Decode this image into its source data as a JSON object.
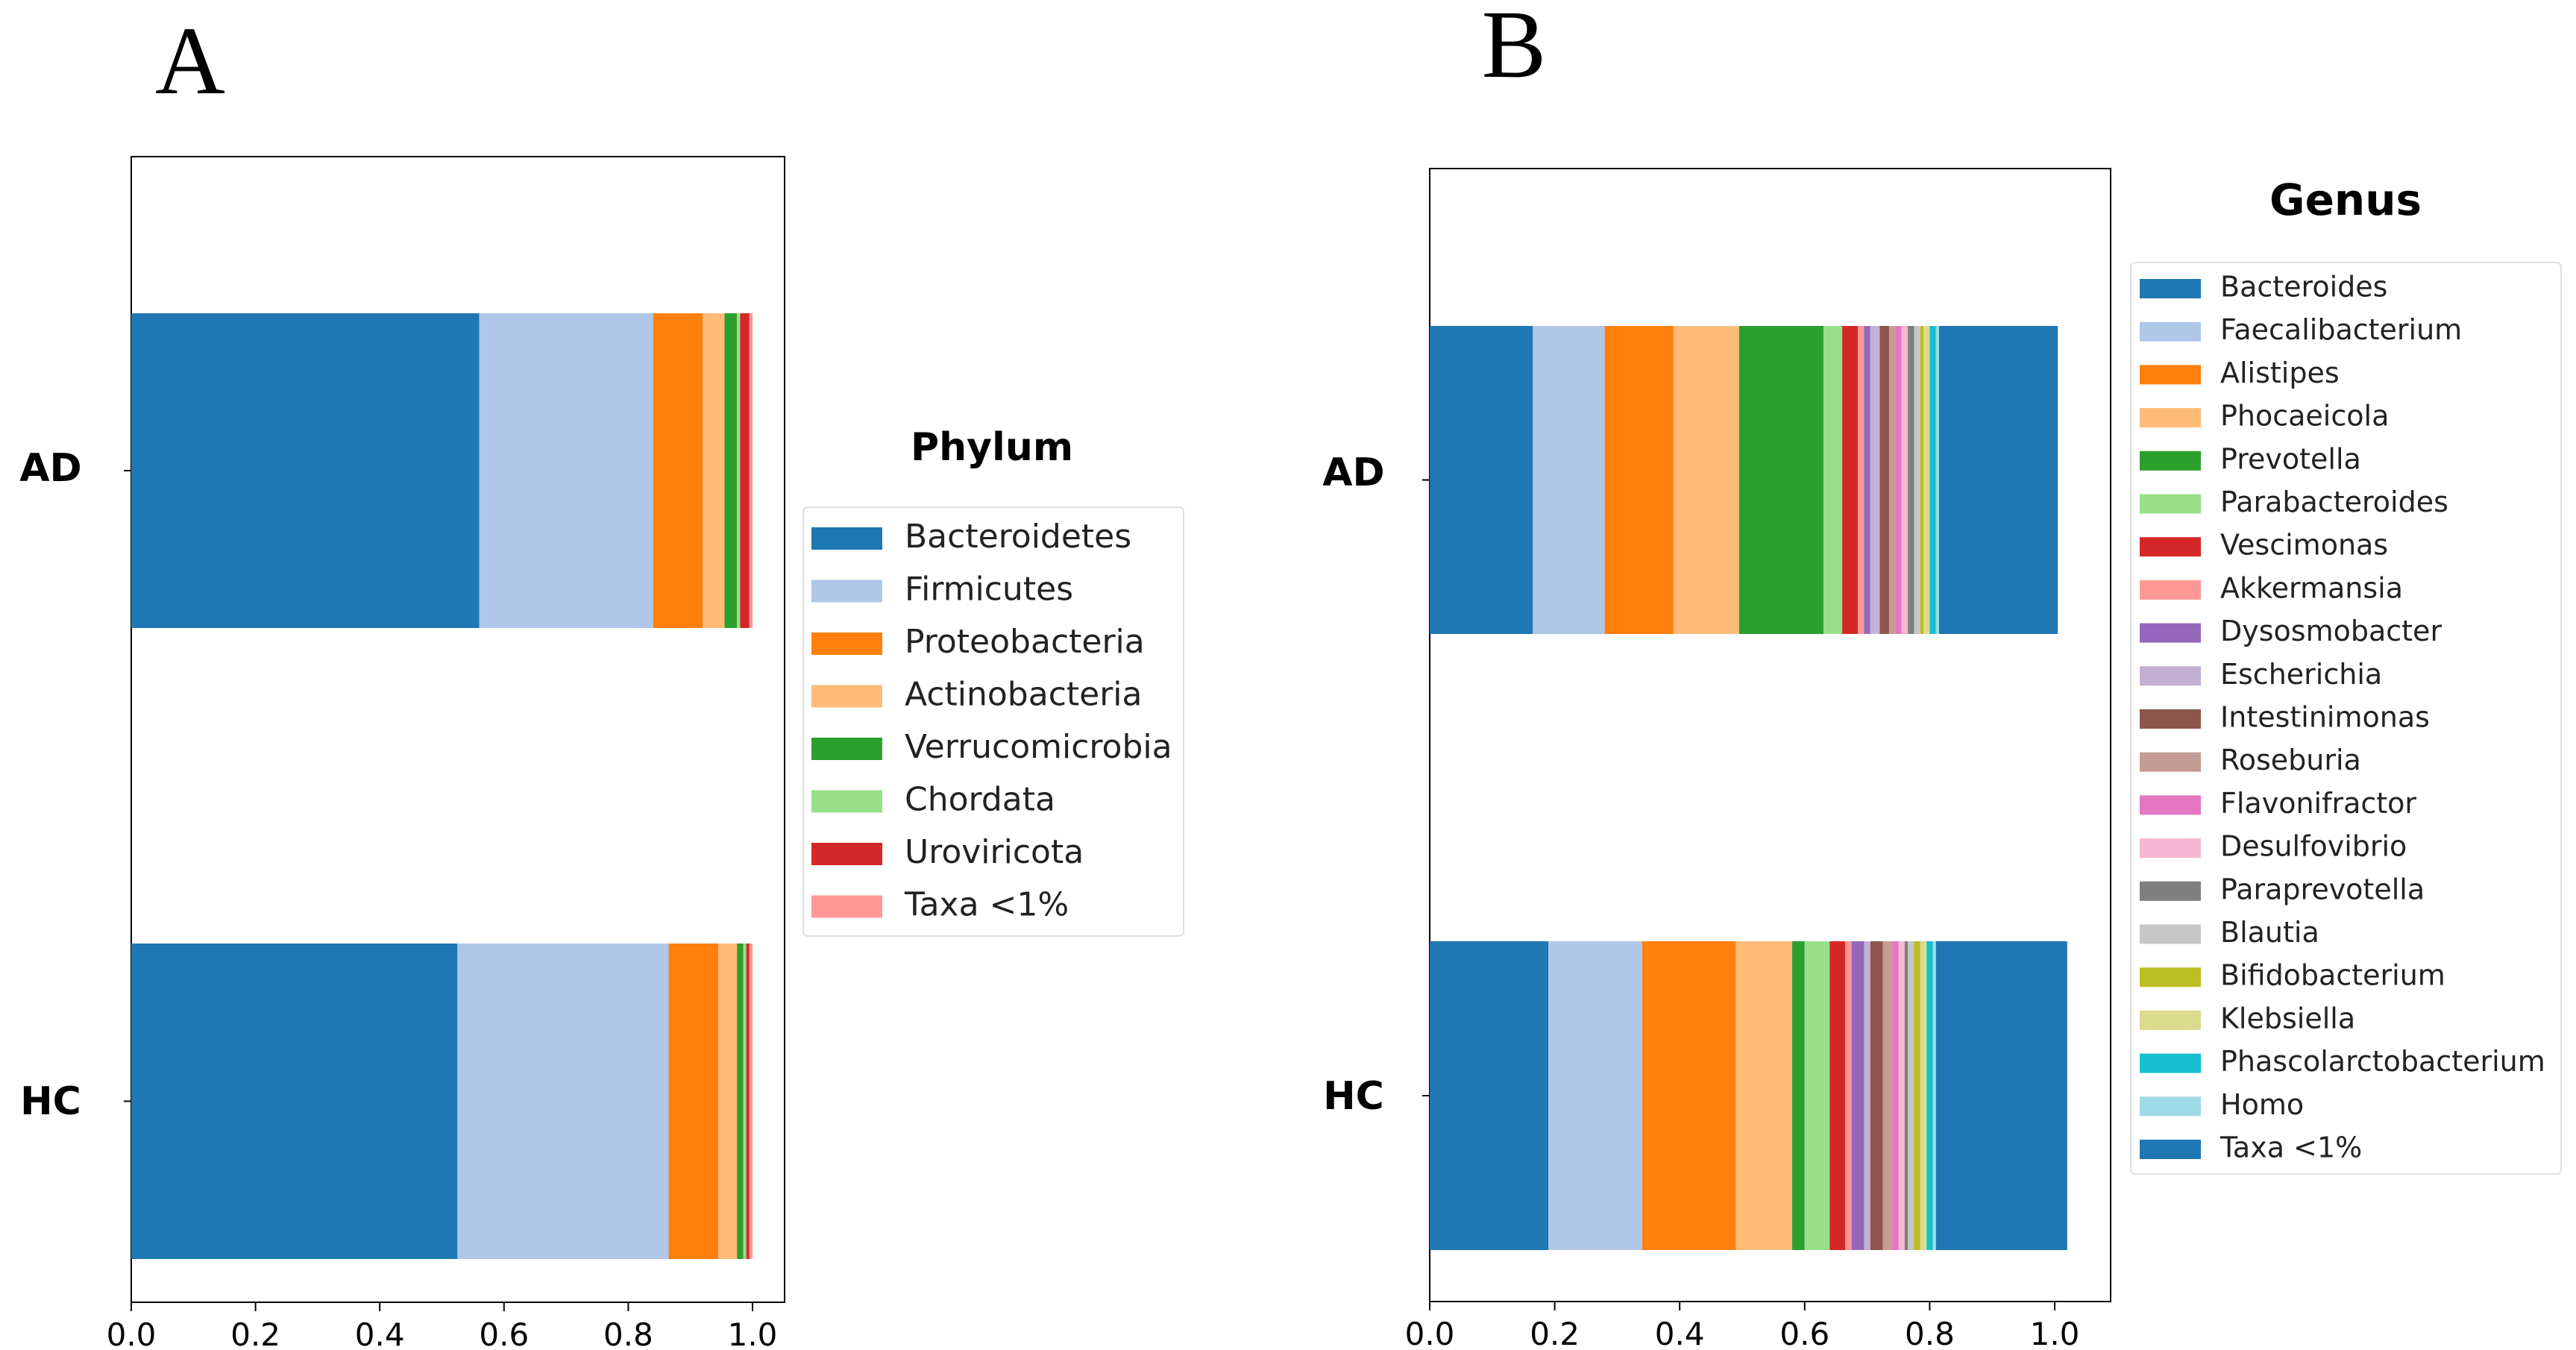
{
  "chart_data": [
    {
      "panel": "A",
      "type": "bar",
      "orientation": "horizontal",
      "stacked": true,
      "categories": [
        "AD",
        "HC"
      ],
      "xlim": [
        0.0,
        1.0
      ],
      "xticks": [
        "0.0",
        "0.2",
        "0.4",
        "0.6",
        "0.8",
        "1.0"
      ],
      "xtick_values": [
        0.0,
        0.2,
        0.4,
        0.6,
        0.8,
        1.0
      ],
      "legend_title": "Phylum",
      "legend_position": "right",
      "series": [
        {
          "name": "Bacteroidetes",
          "color": "#1f77b4",
          "values": [
            0.56,
            0.525
          ]
        },
        {
          "name": "Firmicutes",
          "color": "#aec7e8",
          "values": [
            0.28,
            0.34
          ]
        },
        {
          "name": "Proteobacteria",
          "color": "#ff7f0e",
          "values": [
            0.08,
            0.08
          ]
        },
        {
          "name": "Actinobacteria",
          "color": "#ffbb78",
          "values": [
            0.035,
            0.03
          ]
        },
        {
          "name": "Verrucomicrobia",
          "color": "#2ca02c",
          "values": [
            0.02,
            0.01
          ]
        },
        {
          "name": "Chordata",
          "color": "#98df8a",
          "values": [
            0.005,
            0.005
          ]
        },
        {
          "name": "Uroviricota",
          "color": "#d62728",
          "values": [
            0.015,
            0.005
          ]
        },
        {
          "name": "Taxa <1%",
          "color": "#ff9896",
          "values": [
            0.005,
            0.005
          ]
        }
      ]
    },
    {
      "panel": "B",
      "type": "bar",
      "orientation": "horizontal",
      "stacked": true,
      "categories": [
        "AD",
        "HC"
      ],
      "xlim": [
        0.0,
        1.08
      ],
      "xticks": [
        "0.0",
        "0.2",
        "0.4",
        "0.6",
        "0.8",
        "1.0"
      ],
      "xtick_values": [
        0.0,
        0.2,
        0.4,
        0.6,
        0.8,
        1.0
      ],
      "legend_title": "Genus",
      "legend_position": "right",
      "series": [
        {
          "name": "Bacteroides",
          "color": "#1f77b4",
          "values": [
            0.165,
            0.19
          ]
        },
        {
          "name": "Faecalibacterium",
          "color": "#aec7e8",
          "values": [
            0.115,
            0.15
          ]
        },
        {
          "name": "Alistipes",
          "color": "#ff7f0e",
          "values": [
            0.11,
            0.15
          ]
        },
        {
          "name": "Phocaeicola",
          "color": "#ffbb78",
          "values": [
            0.105,
            0.09
          ]
        },
        {
          "name": "Prevotella",
          "color": "#2ca02c",
          "values": [
            0.135,
            0.02
          ]
        },
        {
          "name": "Parabacteroides",
          "color": "#98df8a",
          "values": [
            0.03,
            0.04
          ]
        },
        {
          "name": "Vescimonas",
          "color": "#d62728",
          "values": [
            0.025,
            0.025
          ]
        },
        {
          "name": "Akkermansia",
          "color": "#ff9896",
          "values": [
            0.01,
            0.01
          ]
        },
        {
          "name": "Dysosmobacter",
          "color": "#9467bd",
          "values": [
            0.01,
            0.02
          ]
        },
        {
          "name": "Escherichia",
          "color": "#c5b0d5",
          "values": [
            0.015,
            0.01
          ]
        },
        {
          "name": "Intestinimonas",
          "color": "#8c564b",
          "values": [
            0.015,
            0.02
          ]
        },
        {
          "name": "Roseburia",
          "color": "#c49c94",
          "values": [
            0.01,
            0.015
          ]
        },
        {
          "name": "Flavonifractor",
          "color": "#e377c2",
          "values": [
            0.01,
            0.01
          ]
        },
        {
          "name": "Desulfovibrio",
          "color": "#f7b6d2",
          "values": [
            0.01,
            0.01
          ]
        },
        {
          "name": "Paraprevotella",
          "color": "#7f7f7f",
          "values": [
            0.01,
            0.005
          ]
        },
        {
          "name": "Blautia",
          "color": "#c7c7c7",
          "values": [
            0.01,
            0.01
          ]
        },
        {
          "name": "Bifidobacterium",
          "color": "#bcbd22",
          "values": [
            0.005,
            0.01
          ]
        },
        {
          "name": "Klebsiella",
          "color": "#dbdb8d",
          "values": [
            0.01,
            0.01
          ]
        },
        {
          "name": "Phascolarctobacterium",
          "color": "#17becf",
          "values": [
            0.01,
            0.01
          ]
        },
        {
          "name": "Homo",
          "color": "#9edae5",
          "values": [
            0.005,
            0.005
          ]
        },
        {
          "name": "Taxa <1%",
          "color": "#1f77b4",
          "values": [
            0.19,
            0.21
          ]
        }
      ]
    }
  ]
}
